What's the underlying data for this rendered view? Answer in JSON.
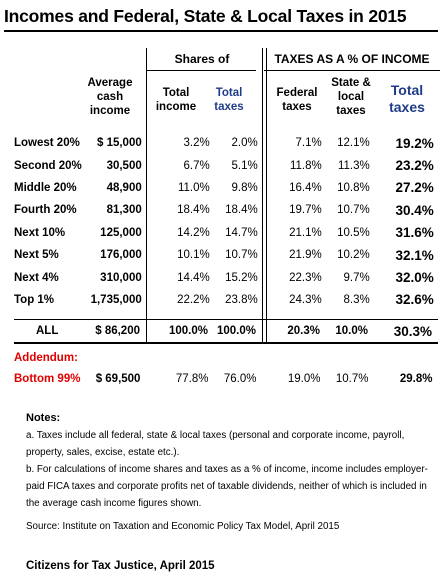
{
  "title": "Incomes and Federal, State & Local Taxes in 2015",
  "headers": {
    "avg_income": [
      "Average",
      "cash",
      "income"
    ],
    "shares_of": "Shares of",
    "total_income": [
      "Total",
      "income"
    ],
    "total_taxes": [
      "Total",
      "taxes"
    ],
    "taxes_pct": "TAXES AS A % OF INCOME",
    "federal_taxes": [
      "Federal",
      "taxes"
    ],
    "state_local_taxes": [
      "State &",
      "local",
      "taxes"
    ],
    "total_taxes_big": [
      "Total",
      "taxes"
    ]
  },
  "rows": [
    {
      "label": "Lowest 20%",
      "income": "$ 15,000",
      "share_income": "3.2%",
      "share_taxes": "2.0%",
      "federal": "7.1%",
      "state_local": "12.1%",
      "total": "19.2%"
    },
    {
      "label": "Second 20%",
      "income": "30,500",
      "share_income": "6.7%",
      "share_taxes": "5.1%",
      "federal": "11.8%",
      "state_local": "11.3%",
      "total": "23.2%"
    },
    {
      "label": "Middle 20%",
      "income": "48,900",
      "share_income": "11.0%",
      "share_taxes": "9.8%",
      "federal": "16.4%",
      "state_local": "10.8%",
      "total": "27.2%"
    },
    {
      "label": "Fourth 20%",
      "income": "81,300",
      "share_income": "18.4%",
      "share_taxes": "18.4%",
      "federal": "19.7%",
      "state_local": "10.7%",
      "total": "30.4%"
    },
    {
      "label": "Next 10%",
      "income": "125,000",
      "share_income": "14.2%",
      "share_taxes": "14.7%",
      "federal": "21.1%",
      "state_local": "10.5%",
      "total": "31.6%"
    },
    {
      "label": "Next 5%",
      "income": "176,000",
      "share_income": "10.1%",
      "share_taxes": "10.7%",
      "federal": "21.9%",
      "state_local": "10.2%",
      "total": "32.1%"
    },
    {
      "label": "Next 4%",
      "income": "310,000",
      "share_income": "14.4%",
      "share_taxes": "15.2%",
      "federal": "22.3%",
      "state_local": "9.7%",
      "total": "32.0%"
    },
    {
      "label": "Top 1%",
      "income": "1,735,000",
      "share_income": "22.2%",
      "share_taxes": "23.8%",
      "federal": "24.3%",
      "state_local": "8.3%",
      "total": "32.6%"
    }
  ],
  "all_row": {
    "label": "ALL",
    "income": "$ 86,200",
    "share_income": "100.0%",
    "share_taxes": "100.0%",
    "federal": "20.3%",
    "state_local": "10.0%",
    "total": "30.3%"
  },
  "addendum": {
    "title": "Addendum:",
    "label": "Bottom 99%",
    "income": "$ 69,500",
    "share_income": "77.8%",
    "share_taxes": "76.0%",
    "federal": "19.0%",
    "state_local": "10.7%",
    "total": "29.8%"
  },
  "notes": {
    "heading": "Notes:",
    "a": "a. Taxes include all federal, state & local taxes (personal and corporate income, payroll, property, sales, excise, estate etc.).",
    "b": "b. For calculations of income shares and taxes as a % of income, income includes employer-paid FICA taxes and corporate profits net of taxable dividends, neither of which is included in the average cash income figures shown.",
    "source": "Source: Institute on Taxation and Economic Policy Tax Model, April 2015"
  },
  "footer": "Citizens for Tax Justice, April 2015",
  "colors": {
    "red": "#e00000",
    "blue": "#1f3c88"
  }
}
